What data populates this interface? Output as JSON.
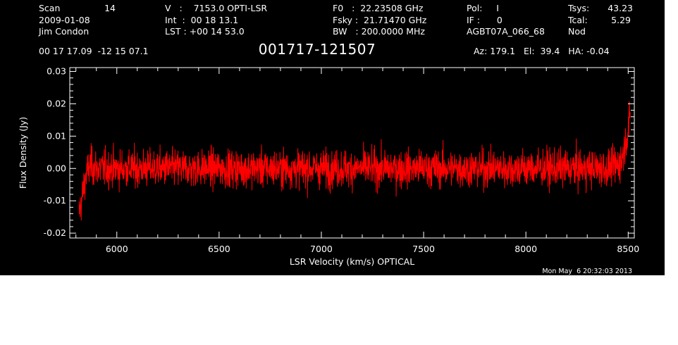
{
  "header": {
    "scan_label": "Scan",
    "scan_value": "14",
    "date": "2009-01-08",
    "observer": "Jim Condon",
    "v_line": "V   :    7153.0 OPTI-LSR",
    "int_line": "Int  :  00 18 13.1",
    "lst_line": "LST : +00 14 53.0",
    "f0_line": "F0   :  22.23508 GHz",
    "fsky_line": "Fsky :  21.71470 GHz",
    "bw_line": "BW   : 200.0000 MHz",
    "pol_line": "Pol:     I",
    "if_line": "IF :      0",
    "project": "AGBT07A_066_68",
    "tsys_label": "Tsys:",
    "tsys_value": "43.23",
    "tcal_label": "Tcal:",
    "tcal_value": "5.29",
    "procedure": "Nod",
    "coords": "00 17 17.09  -12 15 07.1",
    "source": "001717-121507",
    "azel": "Az: 179.1   El:  39.4   HA: -0.04"
  },
  "footer": {
    "timestamp": "Mon May  6 20:32:03 2013"
  },
  "colors": {
    "background": "#000000",
    "foreground": "#ffffff",
    "series": "#ff0000"
  },
  "chart_data": {
    "type": "line",
    "title": "001717-121507",
    "xlabel": "LSR Velocity (km/s) OPTICAL",
    "ylabel": "Flux Density (Jy)",
    "xlim": [
      5770,
      8530
    ],
    "ylim": [
      -0.0215,
      0.0312
    ],
    "xticks": [
      6000,
      6500,
      7000,
      7500,
      8000,
      8500
    ],
    "xtick_labels": [
      "6000",
      "6500",
      "7000",
      "7500",
      "8000",
      "8500"
    ],
    "yticks": [
      -0.02,
      -0.01,
      0.0,
      0.01,
      0.02,
      0.03
    ],
    "ytick_labels": [
      "-0.02",
      "-0.01",
      "0.00",
      "0.01",
      "0.02",
      "0.03"
    ],
    "grid": false,
    "series": [
      {
        "color": "#ff0000",
        "x": [
          5815,
          5825,
          5835,
          5850,
          5870,
          5900,
          6000,
          6200,
          6400,
          6600,
          6800,
          7000,
          7200,
          7400,
          7600,
          7800,
          8000,
          8200,
          8400,
          8450,
          8470,
          8480,
          8490,
          8500,
          8510
        ],
        "y": [
          -0.014,
          -0.011,
          -0.007,
          -0.002,
          0.001,
          0.0,
          0.0,
          0.0,
          0.0,
          0.0,
          0.0,
          0.0,
          0.0,
          0.0,
          0.0,
          0.0,
          0.0,
          0.0,
          0.0,
          0.001,
          0.003,
          0.006,
          0.009,
          0.012,
          0.016
        ],
        "noise_rms_jy": 0.004
      }
    ]
  }
}
